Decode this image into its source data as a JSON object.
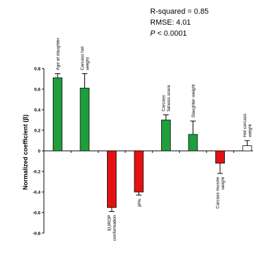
{
  "chart_data": {
    "type": "bar",
    "categories": [
      {
        "lines": [
          "Age at slaughter"
        ],
        "placement": "top"
      },
      {
        "lines": [
          "Carcass hot",
          "weight"
        ],
        "placement": "top"
      },
      {
        "lines": [
          "EUROP",
          "conformation"
        ],
        "placement": "bottom"
      },
      {
        "lines": [
          "pHu"
        ],
        "placement": "bottom"
      },
      {
        "lines": [
          "Carcass",
          "fatness score"
        ],
        "placement": "top"
      },
      {
        "lines": [
          "Slaughter weight"
        ],
        "placement": "top"
      },
      {
        "lines": [
          "Carcass muscle",
          "weight"
        ],
        "placement": "bottom"
      },
      {
        "lines": [
          "Hot carcass",
          "weight"
        ],
        "placement": "top"
      }
    ],
    "values": [
      0.71,
      0.61,
      -0.55,
      -0.4,
      0.3,
      0.16,
      -0.12,
      0.05
    ],
    "errors": [
      0.04,
      0.14,
      0.04,
      0.03,
      0.05,
      0.13,
      0.1,
      0.05
    ],
    "colors": [
      "#1f9e3c",
      "#1f9e3c",
      "#e31212",
      "#e31212",
      "#1f9e3c",
      "#1f9e3c",
      "#e31212",
      "#ffffff"
    ],
    "ylabel": "Normalized coefficient (β)",
    "ylim": [
      -0.8,
      0.8
    ],
    "yticks": [
      "-0.8",
      "-0.6",
      "-0.4",
      "-0.2",
      "0",
      "0.2",
      "0.4",
      "0.6",
      "0.8"
    ],
    "stats": {
      "r_squared": "R-squared = 0.85",
      "rmse": "RMSE: 4.01",
      "p_prefix": "P",
      "p_rest": " < 0.0001"
    }
  }
}
